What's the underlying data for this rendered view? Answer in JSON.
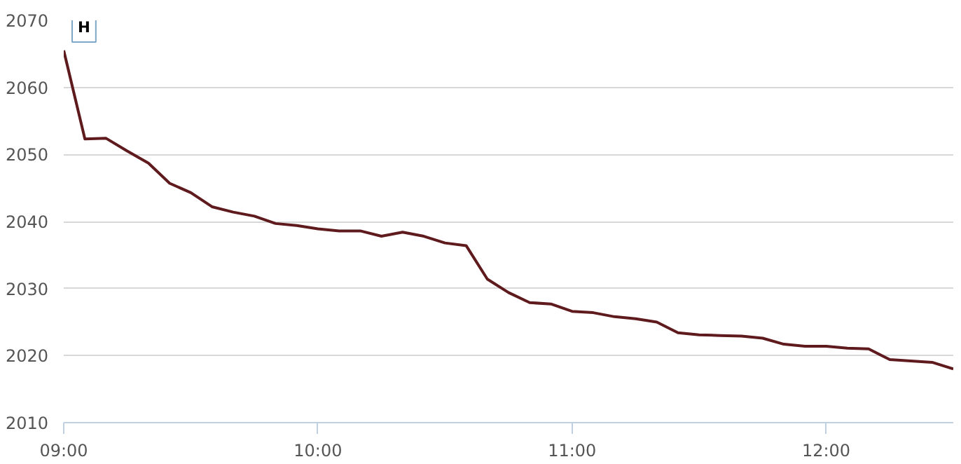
{
  "chart_data": {
    "type": "line",
    "x": [
      9.0,
      9.0833,
      9.1667,
      9.25,
      9.3333,
      9.4167,
      9.5,
      9.5833,
      9.6667,
      9.75,
      9.8333,
      9.9167,
      10.0,
      10.0833,
      10.1667,
      10.25,
      10.3333,
      10.4167,
      10.5,
      10.5833,
      10.6667,
      10.75,
      10.8333,
      10.9167,
      11.0,
      11.0833,
      11.1667,
      11.25,
      11.3333,
      11.4167,
      11.5,
      11.5833,
      11.6667,
      11.75,
      11.8333,
      11.9167,
      12.0,
      12.0833,
      12.1667,
      12.25,
      12.3333,
      12.4167,
      12.5
    ],
    "series": [
      {
        "color": "#5e1a1d",
        "values": [
          2065.5,
          2052.3,
          2052.4,
          2050.5,
          2048.7,
          2045.7,
          2044.3,
          2042.2,
          2041.4,
          2040.8,
          2039.7,
          2039.4,
          2038.9,
          2038.6,
          2038.6,
          2037.8,
          2038.4,
          2037.8,
          2036.8,
          2036.4,
          2031.4,
          2029.4,
          2027.9,
          2027.7,
          2026.6,
          2026.4,
          2025.8,
          2025.5,
          2025.0,
          2023.4,
          2023.1,
          2023.0,
          2022.9,
          2022.6,
          2021.7,
          2021.4,
          2021.4,
          2021.1,
          2021.0,
          2019.4,
          2019.2,
          2019.0,
          2018.0
        ]
      }
    ],
    "xlim": [
      9,
      12.5
    ],
    "xticks": [
      {
        "value": 9,
        "label": "09:00"
      },
      {
        "value": 10,
        "label": "10:00"
      },
      {
        "value": 11,
        "label": "11:00"
      },
      {
        "value": 12,
        "label": "12:00"
      }
    ],
    "ylim": [
      2010,
      2070
    ],
    "yticks": [
      2010,
      2020,
      2030,
      2040,
      2050,
      2060,
      2070
    ],
    "grid": "y",
    "line_style": "solid",
    "annotations": [
      {
        "text": "H",
        "x": 9,
        "y": 2065.5
      }
    ]
  }
}
